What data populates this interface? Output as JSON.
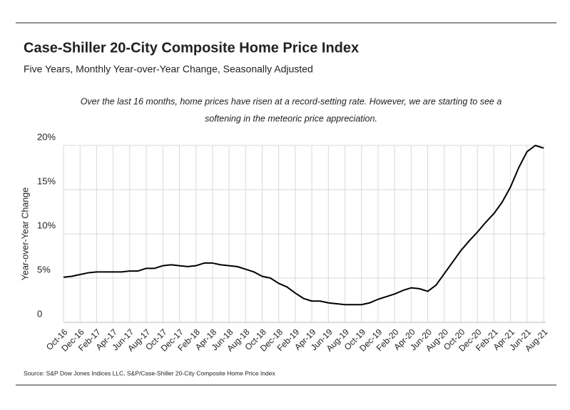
{
  "chart_data": {
    "type": "line",
    "title": "Case-Shiller 20-City Composite Home Price Index",
    "subtitle": "Five Years, Monthly Year-over-Year Change, Seasonally Adjusted",
    "annotation": [
      "Over the last 16 months, home prices have risen at a record-setting rate. However, we are starting to see a",
      "softening in the meteoric price appreciation."
    ],
    "ylabel": "Year-over-Year Change",
    "source": "Source: S&P Dow Jones Indices LLC, S&P/Case-Shiller 20-City Composite Home Price Index",
    "categories": [
      "Oct-16",
      null,
      "Dec-16",
      null,
      "Feb-17",
      null,
      "Apr-17",
      null,
      "Jun-17",
      null,
      "Aug-17",
      null,
      "Oct-17",
      null,
      "Dec-17",
      null,
      "Feb-18",
      null,
      "Apr-18",
      null,
      "Jun-18",
      null,
      "Aug-18",
      null,
      "Oct-18",
      null,
      "Dec-18",
      null,
      "Feb-19",
      null,
      "Apr-19",
      null,
      "Jun-19",
      null,
      "Aug-19",
      null,
      "Oct-19",
      null,
      "Dec-19",
      null,
      "Feb-20",
      null,
      "Apr-20",
      null,
      "Jun-20",
      null,
      "Aug-20",
      null,
      "Oct-20",
      null,
      "Dec-20",
      null,
      "Feb-21",
      null,
      "Apr-21",
      null,
      "Jun-21",
      null,
      "Aug-21"
    ],
    "series": [
      {
        "name": "Year-over-Year Change",
        "color": "#000000",
        "values": [
          5.1,
          5.2,
          5.4,
          5.6,
          5.7,
          5.7,
          5.7,
          5.7,
          5.8,
          5.8,
          6.1,
          6.1,
          6.4,
          6.5,
          6.4,
          6.3,
          6.4,
          6.7,
          6.7,
          6.5,
          6.4,
          6.3,
          6.0,
          5.7,
          5.2,
          5.0,
          4.4,
          4.0,
          3.3,
          2.7,
          2.4,
          2.4,
          2.2,
          2.1,
          2.0,
          2.0,
          2.0,
          2.2,
          2.6,
          2.9,
          3.2,
          3.6,
          3.9,
          3.8,
          3.5,
          4.2,
          5.5,
          6.8,
          8.1,
          9.2,
          10.2,
          11.3,
          12.3,
          13.6,
          15.3,
          17.5,
          19.3,
          20.0,
          19.7
        ]
      }
    ],
    "ylim": [
      0,
      20
    ],
    "yticks": [
      0,
      {
        "value": 5,
        "label": "5%"
      },
      {
        "value": 10,
        "label": "10%"
      },
      {
        "value": 15,
        "label": "15%"
      },
      {
        "value": 20,
        "label": "20%"
      }
    ],
    "grid": true
  }
}
